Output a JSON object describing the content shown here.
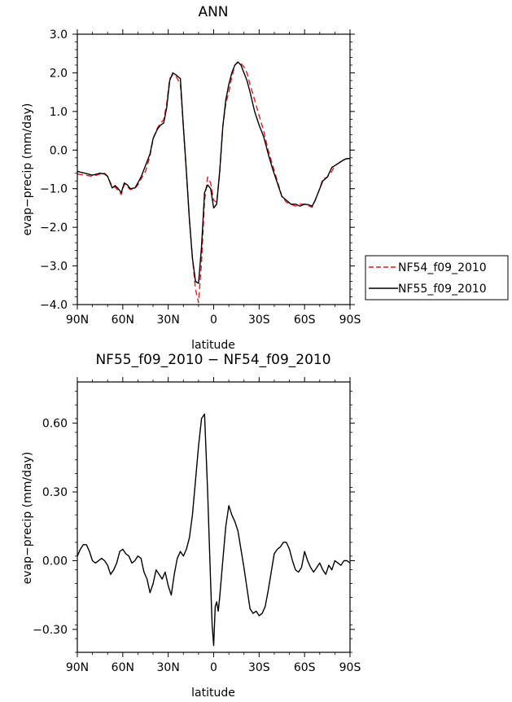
{
  "chart_data": [
    {
      "type": "line",
      "title": "ANN",
      "xlabel": "latitude",
      "ylabel": "evap−precip (mm/day)",
      "xlim": [
        90,
        -90
      ],
      "ylim": [
        -4.0,
        3.0
      ],
      "x_ticks": [
        90,
        60,
        30,
        0,
        -30,
        -60,
        -90
      ],
      "x_ticklabels": [
        "90N",
        "60N",
        "30N",
        "0",
        "30S",
        "60S",
        "90S"
      ],
      "y_ticks": [
        3.0,
        2.0,
        1.0,
        0.0,
        -1.0,
        -2.0,
        -3.0,
        -4.0
      ],
      "y_ticklabels": [
        "3.0",
        "2.0",
        "1.0",
        "0.0",
        "−1.0",
        "−2.0",
        "−3.0",
        "−4.0"
      ],
      "grid": false,
      "legend_position": "right",
      "series": [
        {
          "name": "NF54_f09_2010",
          "color": "#e41a1c",
          "dash": "dashed",
          "x": [
            90,
            85,
            80,
            75,
            72,
            70,
            67,
            65,
            63,
            61,
            59,
            57,
            55,
            52,
            50,
            48,
            45,
            42,
            40,
            37,
            35,
            33,
            31,
            29,
            27,
            25,
            22,
            20,
            18,
            16,
            14,
            12,
            10,
            8,
            6,
            4,
            2,
            0,
            -2,
            -4,
            -6,
            -8,
            -10,
            -12,
            -14,
            -16,
            -18,
            -20,
            -22,
            -24,
            -27,
            -30,
            -33,
            -36,
            -39,
            -42,
            -45,
            -48,
            -51,
            -54,
            -57,
            -60,
            -63,
            -65,
            -67,
            -70,
            -72,
            -75,
            -78,
            -80,
            -82,
            -84,
            -86,
            -88,
            -90
          ],
          "y": [
            -0.62,
            -0.65,
            -0.68,
            -0.62,
            -0.6,
            -0.68,
            -0.95,
            -0.96,
            -1.05,
            -1.15,
            -0.88,
            -0.95,
            -1.02,
            -1.0,
            -0.9,
            -0.75,
            -0.55,
            -0.15,
            0.3,
            0.58,
            0.7,
            0.78,
            1.2,
            1.85,
            1.95,
            1.92,
            1.7,
            0.6,
            -0.6,
            -1.8,
            -2.8,
            -3.6,
            -3.95,
            -2.9,
            -1.3,
            -0.7,
            -0.85,
            -1.3,
            -1.35,
            -0.6,
            0.6,
            1.2,
            1.5,
            1.9,
            2.2,
            2.28,
            2.25,
            2.15,
            2.0,
            1.7,
            1.3,
            0.9,
            0.5,
            0.0,
            -0.4,
            -0.8,
            -1.2,
            -1.35,
            -1.4,
            -1.45,
            -1.4,
            -1.4,
            -1.45,
            -1.48,
            -1.3,
            -1.0,
            -0.75,
            -0.7,
            -0.55,
            -0.4,
            -0.35,
            -0.3,
            -0.25,
            -0.22,
            -0.25
          ]
        },
        {
          "name": "NF55_f09_2010",
          "color": "#000000",
          "dash": "solid",
          "x": [
            90,
            85,
            80,
            75,
            72,
            70,
            67,
            65,
            63,
            61,
            59,
            57,
            55,
            52,
            50,
            48,
            45,
            42,
            40,
            37,
            35,
            33,
            31,
            29,
            27,
            25,
            22,
            20,
            18,
            16,
            14,
            12,
            10,
            8,
            6,
            4,
            2,
            0,
            -2,
            -4,
            -6,
            -8,
            -10,
            -12,
            -14,
            -16,
            -18,
            -20,
            -22,
            -24,
            -27,
            -30,
            -33,
            -36,
            -39,
            -42,
            -45,
            -48,
            -51,
            -54,
            -57,
            -60,
            -63,
            -65,
            -67,
            -70,
            -72,
            -75,
            -78,
            -80,
            -82,
            -84,
            -86,
            -88,
            -90
          ],
          "y": [
            -0.55,
            -0.6,
            -0.65,
            -0.6,
            -0.62,
            -0.68,
            -0.98,
            -0.92,
            -1.0,
            -1.1,
            -0.85,
            -0.9,
            -1.0,
            -0.98,
            -0.85,
            -0.7,
            -0.4,
            -0.1,
            0.3,
            0.55,
            0.65,
            0.7,
            1.1,
            1.8,
            2.0,
            1.95,
            1.85,
            0.6,
            -0.55,
            -1.8,
            -2.8,
            -3.4,
            -3.45,
            -2.5,
            -1.1,
            -0.9,
            -1.0,
            -1.5,
            -1.4,
            -0.55,
            0.6,
            1.3,
            1.7,
            2.0,
            2.2,
            2.28,
            2.2,
            2.0,
            1.8,
            1.5,
            1.0,
            0.65,
            0.35,
            -0.1,
            -0.5,
            -0.85,
            -1.2,
            -1.3,
            -1.4,
            -1.4,
            -1.45,
            -1.4,
            -1.42,
            -1.45,
            -1.3,
            -1.0,
            -0.8,
            -0.7,
            -0.45,
            -0.4,
            -0.35,
            -0.3,
            -0.25,
            -0.22,
            -0.22
          ]
        }
      ]
    },
    {
      "type": "line",
      "title": "NF55_f09_2010 − NF54_f09_2010",
      "xlabel": "latitude",
      "ylabel": "evap−precip (mm/day)",
      "xlim": [
        90,
        -90
      ],
      "ylim": [
        -0.4,
        0.78
      ],
      "x_ticks": [
        90,
        60,
        30,
        0,
        -30,
        -60,
        -90
      ],
      "x_ticklabels": [
        "90N",
        "60N",
        "30N",
        "0",
        "30S",
        "60S",
        "90S"
      ],
      "y_ticks": [
        0.6,
        0.3,
        0.0,
        -0.3
      ],
      "y_ticklabels": [
        "0.60",
        "0.30",
        "0.00",
        "−0.30"
      ],
      "grid": false,
      "series": [
        {
          "color": "#000000",
          "dash": "solid",
          "x": [
            90,
            88,
            86,
            84,
            82,
            80,
            78,
            76,
            74,
            72,
            70,
            68,
            66,
            64,
            62,
            60,
            58,
            56,
            54,
            52,
            50,
            48,
            46,
            44,
            42,
            40,
            38,
            36,
            34,
            32,
            30,
            28,
            26,
            24,
            22,
            20,
            18,
            16,
            14,
            12,
            10,
            8,
            6,
            4,
            2,
            1,
            0,
            -1,
            -2,
            -3,
            -4,
            -6,
            -8,
            -10,
            -12,
            -14,
            -16,
            -18,
            -20,
            -22,
            -24,
            -26,
            -28,
            -30,
            -32,
            -34,
            -36,
            -38,
            -40,
            -42,
            -44,
            -46,
            -48,
            -50,
            -52,
            -54,
            -56,
            -58,
            -60,
            -62,
            -64,
            -66,
            -68,
            -70,
            -72,
            -74,
            -76,
            -78,
            -80,
            -82,
            -84,
            -86,
            -88,
            -90
          ],
          "y": [
            0.02,
            0.05,
            0.07,
            0.07,
            0.04,
            0.0,
            -0.01,
            0.0,
            0.01,
            0.0,
            -0.02,
            -0.06,
            -0.04,
            -0.01,
            0.04,
            0.05,
            0.03,
            0.02,
            -0.01,
            0.0,
            0.02,
            0.01,
            -0.05,
            -0.08,
            -0.14,
            -0.1,
            -0.04,
            -0.06,
            -0.08,
            -0.05,
            -0.11,
            -0.15,
            -0.06,
            0.01,
            0.04,
            0.02,
            0.05,
            0.1,
            0.2,
            0.35,
            0.5,
            0.62,
            0.64,
            0.3,
            -0.1,
            -0.28,
            -0.37,
            -0.2,
            -0.18,
            -0.22,
            -0.16,
            0.0,
            0.15,
            0.24,
            0.2,
            0.17,
            0.13,
            0.05,
            -0.03,
            -0.12,
            -0.21,
            -0.23,
            -0.22,
            -0.24,
            -0.23,
            -0.2,
            -0.13,
            -0.05,
            0.03,
            0.05,
            0.06,
            0.08,
            0.08,
            0.05,
            0.0,
            -0.04,
            -0.05,
            -0.03,
            0.04,
            0.0,
            -0.03,
            -0.05,
            -0.03,
            -0.01,
            -0.04,
            -0.06,
            -0.02,
            -0.04,
            0.0,
            -0.01,
            -0.02,
            0.0,
            0.0,
            -0.01
          ]
        }
      ]
    }
  ]
}
